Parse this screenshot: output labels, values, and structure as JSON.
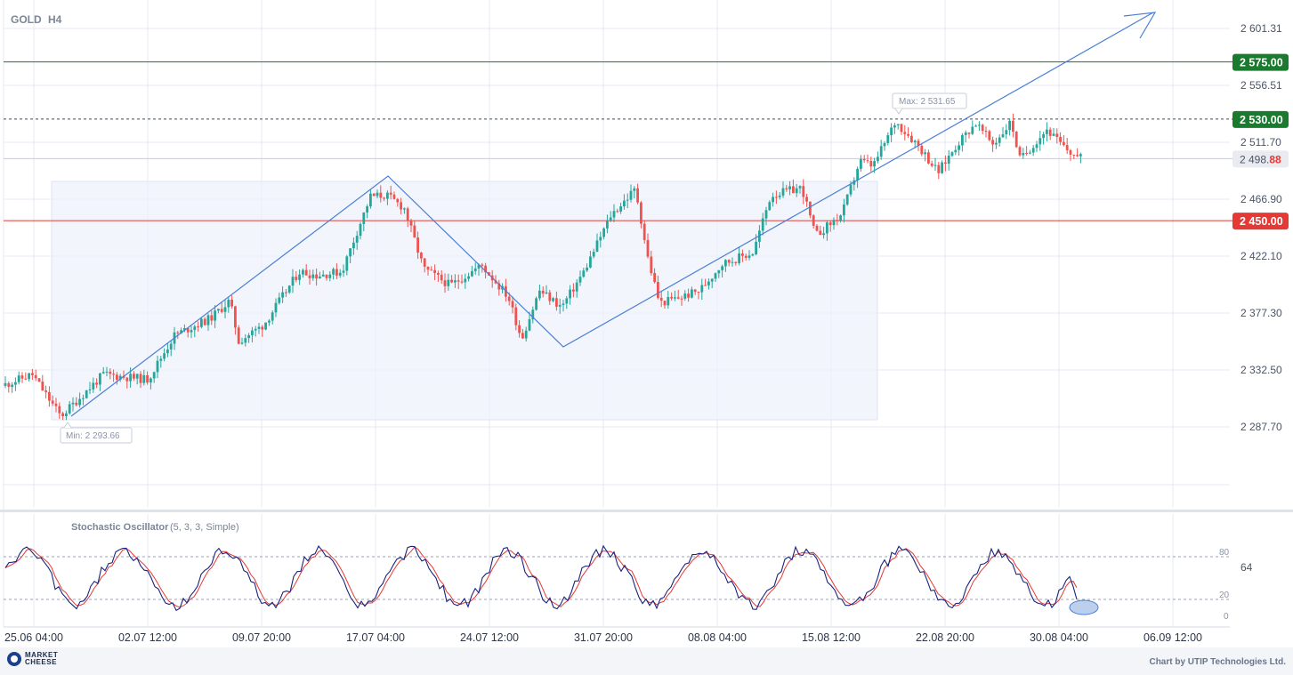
{
  "header": {
    "symbol": "GOLD",
    "timeframe": "H4"
  },
  "chart_data": {
    "type": "candlestick",
    "symbol": "GOLD",
    "timeframe": "H4",
    "price_axis": {
      "ticks": [
        "2 601.31",
        "2 556.51",
        "2 511.70",
        "2 466.90",
        "2 422.10",
        "2 377.30",
        "2 332.50",
        "2 287.70"
      ],
      "range": [
        2230,
        2617
      ]
    },
    "time_axis": {
      "labels": [
        "25.06 04:00",
        "02.07 12:00",
        "09.07 20:00",
        "17.07 04:00",
        "24.07 12:00",
        "31.07 20:00",
        "08.08 04:00",
        "15.08 12:00",
        "22.08 20:00",
        "30.08 04:00",
        "06.09 12:00"
      ]
    },
    "levels": [
      {
        "value": 2575.0,
        "label": "2 575.00",
        "color": "#1a7a2e",
        "style": "solid"
      },
      {
        "value": 2530.0,
        "label": "2 530.00",
        "color": "#1a7a2e",
        "style": "dashed"
      },
      {
        "value": 2450.0,
        "label": "2 450.00",
        "color": "#e53935",
        "style": "solid"
      }
    ],
    "current_price": {
      "value": 2498.88,
      "label_main": "2 498.",
      "label_tail": "88"
    },
    "extremes": {
      "max": {
        "value": 2531.65,
        "label": "Max: 2 531.65"
      },
      "min": {
        "value": 2293.66,
        "label": "Min: 2 293.66"
      }
    },
    "path_points": [
      [
        2293.66,
        2297
      ],
      [
        2432,
        2297
      ],
      [
        2294,
        2350
      ],
      [
        2336,
        2403
      ],
      [
        2270,
        2480
      ]
    ],
    "zigzag": [
      {
        "t": 0.05,
        "p": 2296
      },
      {
        "t": 0.3,
        "p": 2483
      },
      {
        "t": 0.46,
        "p": 2349
      },
      {
        "t": 1.0,
        "p": 2607
      }
    ],
    "oscillator": {
      "name": "Stochastic Oscillator",
      "params": "(5, 3, 3, Simple)",
      "levels": [
        80,
        20
      ],
      "level_labels": [
        "80",
        "20"
      ],
      "current_label": "64",
      "zero_label": "0"
    },
    "colors": {
      "up": "#26a69a",
      "down": "#ef5350",
      "grid": "#e6e9f4",
      "trend": "#4a7fd4",
      "osc_k": "#1a237e",
      "osc_d": "#e53935"
    }
  },
  "footer": {
    "brand_line1": "MARKET",
    "brand_line2": "CHEESE",
    "credit": "Chart by UTIP Technologies Ltd."
  }
}
